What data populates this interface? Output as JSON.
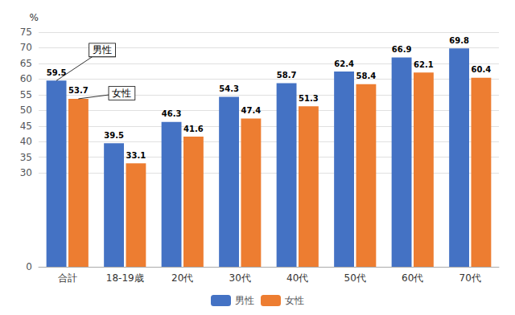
{
  "chart_data": {
    "type": "bar",
    "categories": [
      "合計",
      "18-19歳",
      "20代",
      "30代",
      "40代",
      "50代",
      "60代",
      "70代"
    ],
    "series": [
      {
        "name": "男性",
        "color": "#4472C4",
        "values": [
          59.5,
          39.5,
          46.3,
          54.3,
          58.7,
          62.4,
          66.9,
          69.8
        ]
      },
      {
        "name": "女性",
        "color": "#ED7D31",
        "values": [
          53.7,
          33.1,
          41.6,
          47.4,
          51.3,
          58.4,
          62.1,
          60.4
        ]
      }
    ],
    "y_label": "%",
    "ylim": [
      0,
      75
    ],
    "yticks": [
      0,
      30,
      35,
      40,
      45,
      50,
      55,
      60,
      65,
      70,
      75
    ],
    "grid": true,
    "legend": "bottom",
    "data_labels": true,
    "annotations": [
      {
        "text": "男性",
        "series": "男性",
        "category": "合計"
      },
      {
        "text": "女性",
        "series": "女性",
        "category": "合計"
      }
    ]
  }
}
